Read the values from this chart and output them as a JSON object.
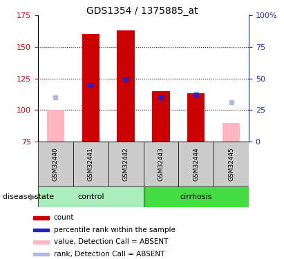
{
  "title": "GDS1354 / 1375885_at",
  "samples": [
    "GSM32440",
    "GSM32441",
    "GSM32442",
    "GSM32443",
    "GSM32444",
    "GSM32445"
  ],
  "ylim_left": [
    75,
    175
  ],
  "ylim_right": [
    0,
    100
  ],
  "yticks_left": [
    75,
    100,
    125,
    150,
    175
  ],
  "yticks_right": [
    0,
    25,
    50,
    75,
    100
  ],
  "red_bars": [
    null,
    160,
    163,
    115,
    113,
    null
  ],
  "pink_bars": [
    100,
    null,
    null,
    null,
    null,
    90
  ],
  "blue_squares": [
    null,
    120,
    124,
    110,
    112,
    null
  ],
  "light_blue_squares": [
    110,
    null,
    null,
    null,
    null,
    106
  ],
  "bar_bottom": 75,
  "bar_width": 0.5,
  "red_color": "#CC0000",
  "pink_color": "#FFB6C1",
  "blue_color": "#2222CC",
  "light_blue_color": "#AABBDD",
  "left_axis_color": "#CC0000",
  "right_axis_color": "#2222CC",
  "control_color": "#AAEEBB",
  "cirrhosis_color": "#44DD44",
  "sample_box_color": "#CCCCCC",
  "legend_items": [
    {
      "label": "count",
      "color": "#CC0000"
    },
    {
      "label": "percentile rank within the sample",
      "color": "#2222CC"
    },
    {
      "label": "value, Detection Call = ABSENT",
      "color": "#FFB6C1"
    },
    {
      "label": "rank, Detection Call = ABSENT",
      "color": "#AABBDD"
    }
  ],
  "group_label": "disease state"
}
